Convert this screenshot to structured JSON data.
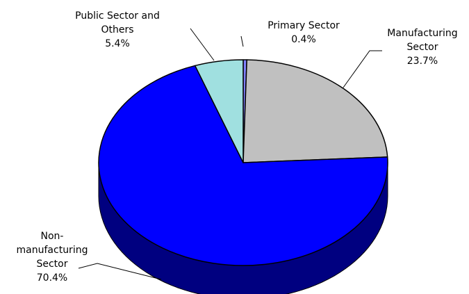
{
  "chart_data": {
    "type": "pie",
    "title": "",
    "slices": [
      {
        "name_lines": [
          "Primary Sector"
        ],
        "value": 0.4,
        "label": "0.4%",
        "color": "#8080ff",
        "side": "#404080"
      },
      {
        "name_lines": [
          "Manufacturing",
          "Sector"
        ],
        "value": 23.7,
        "label": "23.7%",
        "color": "#c0c0c0",
        "side": "#808080"
      },
      {
        "name_lines": [
          "Non-",
          "manufacturing",
          "Sector"
        ],
        "value": 70.4,
        "label": "70.4%",
        "color": "#0000ff",
        "side": "#000080"
      },
      {
        "name_lines": [
          "Public Sector and",
          "Others"
        ],
        "value": 5.4,
        "label": "5.4%",
        "color": "#a0e0e0",
        "side": "#508080"
      }
    ]
  }
}
